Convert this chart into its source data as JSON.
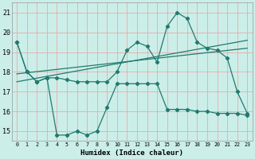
{
  "xlabel": "Humidex (Indice chaleur)",
  "bg_color": "#cceee8",
  "grid_color": "#e8aaaa",
  "line_color": "#217a6e",
  "xlim": [
    -0.5,
    23.5
  ],
  "ylim": [
    14.5,
    21.5
  ],
  "yticks": [
    15,
    16,
    17,
    18,
    19,
    20,
    21
  ],
  "xticks": [
    0,
    1,
    2,
    3,
    4,
    5,
    6,
    7,
    8,
    9,
    10,
    11,
    12,
    13,
    14,
    15,
    16,
    17,
    18,
    19,
    20,
    21,
    22,
    23
  ],
  "curve_top_x": [
    0,
    1,
    2,
    3,
    4,
    5,
    6,
    7,
    8,
    9,
    10,
    11,
    12,
    13,
    14,
    15,
    16,
    17,
    18,
    19,
    20,
    21,
    22,
    23
  ],
  "curve_top_y": [
    19.5,
    18.0,
    17.5,
    17.7,
    17.7,
    17.6,
    17.5,
    17.5,
    17.5,
    17.5,
    18.0,
    19.1,
    19.5,
    19.3,
    18.5,
    20.3,
    21.0,
    20.7,
    19.5,
    19.2,
    19.1,
    18.7,
    17.0,
    15.9
  ],
  "curve_bot_x": [
    0,
    1,
    2,
    3,
    4,
    5,
    6,
    7,
    8,
    9,
    10,
    11,
    12,
    13,
    14,
    15,
    16,
    17,
    18,
    19,
    20,
    21,
    22,
    23
  ],
  "curve_bot_y": [
    19.5,
    18.0,
    17.5,
    17.7,
    14.8,
    14.8,
    15.0,
    14.8,
    15.0,
    16.2,
    17.4,
    17.4,
    17.4,
    17.4,
    17.4,
    16.1,
    16.1,
    16.1,
    16.0,
    16.0,
    15.9,
    15.9,
    15.9,
    15.8
  ],
  "trend1_x": [
    0,
    23
  ],
  "trend1_y": [
    17.9,
    19.2
  ],
  "trend2_x": [
    0,
    23
  ],
  "trend2_y": [
    17.5,
    19.6
  ]
}
